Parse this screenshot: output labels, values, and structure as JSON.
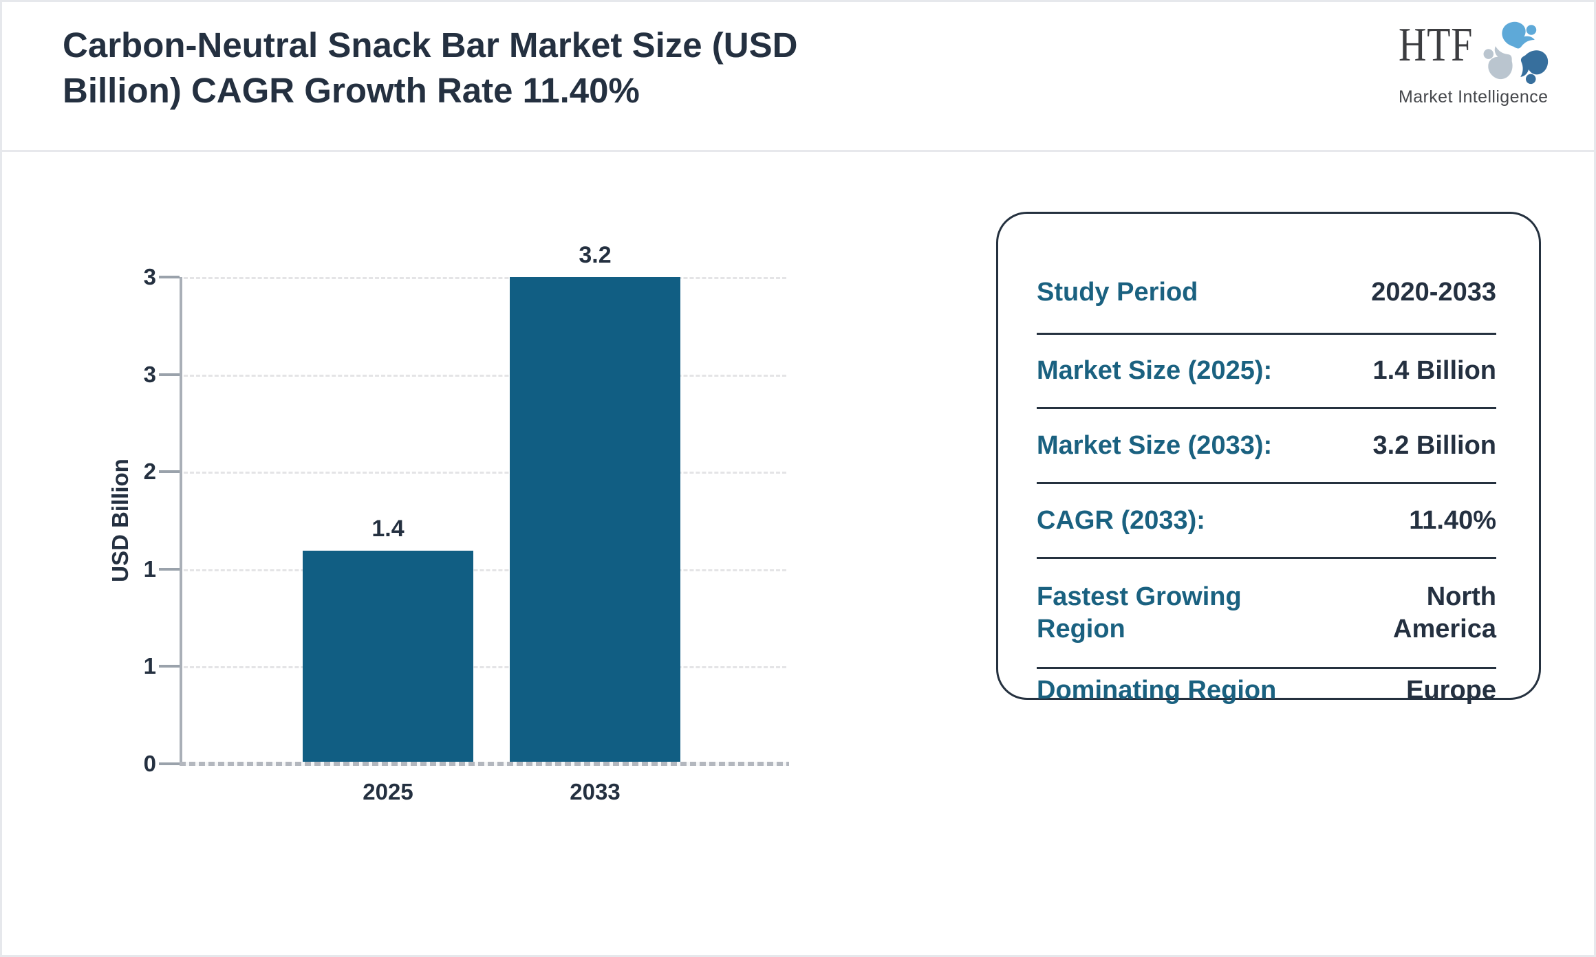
{
  "header": {
    "title_lines": [
      "Carbon-Neutral Snack Bar Market Size (USD",
      "Billion) CAGR Growth Rate 11.40%"
    ]
  },
  "brand": {
    "wordmark": "HTF",
    "subtitle": "Market Intelligence",
    "icon": "three-swirling-figures-icon",
    "icon_colors": [
      "#5ea9d8",
      "#376f9d",
      "#bac5cf"
    ]
  },
  "chart_data": {
    "type": "bar",
    "categories": [
      "2025",
      "2033"
    ],
    "values": [
      1.4,
      3.2
    ],
    "bar_labels": [
      "1.4",
      "3.2"
    ],
    "title": "",
    "xlabel": "",
    "ylabel": "USD Billion",
    "ylim": [
      0,
      3.2
    ],
    "ytick_labels": [
      "0",
      "1",
      "1",
      "2",
      "3",
      "3"
    ],
    "grid": "horizontal-dashed",
    "legend": "none",
    "bar_color": "#115e83"
  },
  "summary_card": {
    "rows": [
      {
        "label": "Study Period",
        "value": "2020-2033"
      },
      {
        "label": "Market Size (2025):",
        "value": "1.4 Billion"
      },
      {
        "label": "Market Size (2033):",
        "value": "3.2 Billion"
      },
      {
        "label": "CAGR (2033):",
        "value": "11.40%"
      },
      {
        "label": "Fastest Growing Region",
        "value": "North America"
      },
      {
        "label": "Dominating Region",
        "value": "Europe"
      }
    ]
  },
  "colors": {
    "navy_text": "#243040",
    "teal_label": "#1a6180",
    "bar": "#115e83",
    "axis_gray": "#a9afb7",
    "grid_gray": "#e4e4e6",
    "frame_gray": "#e6e8ec"
  }
}
